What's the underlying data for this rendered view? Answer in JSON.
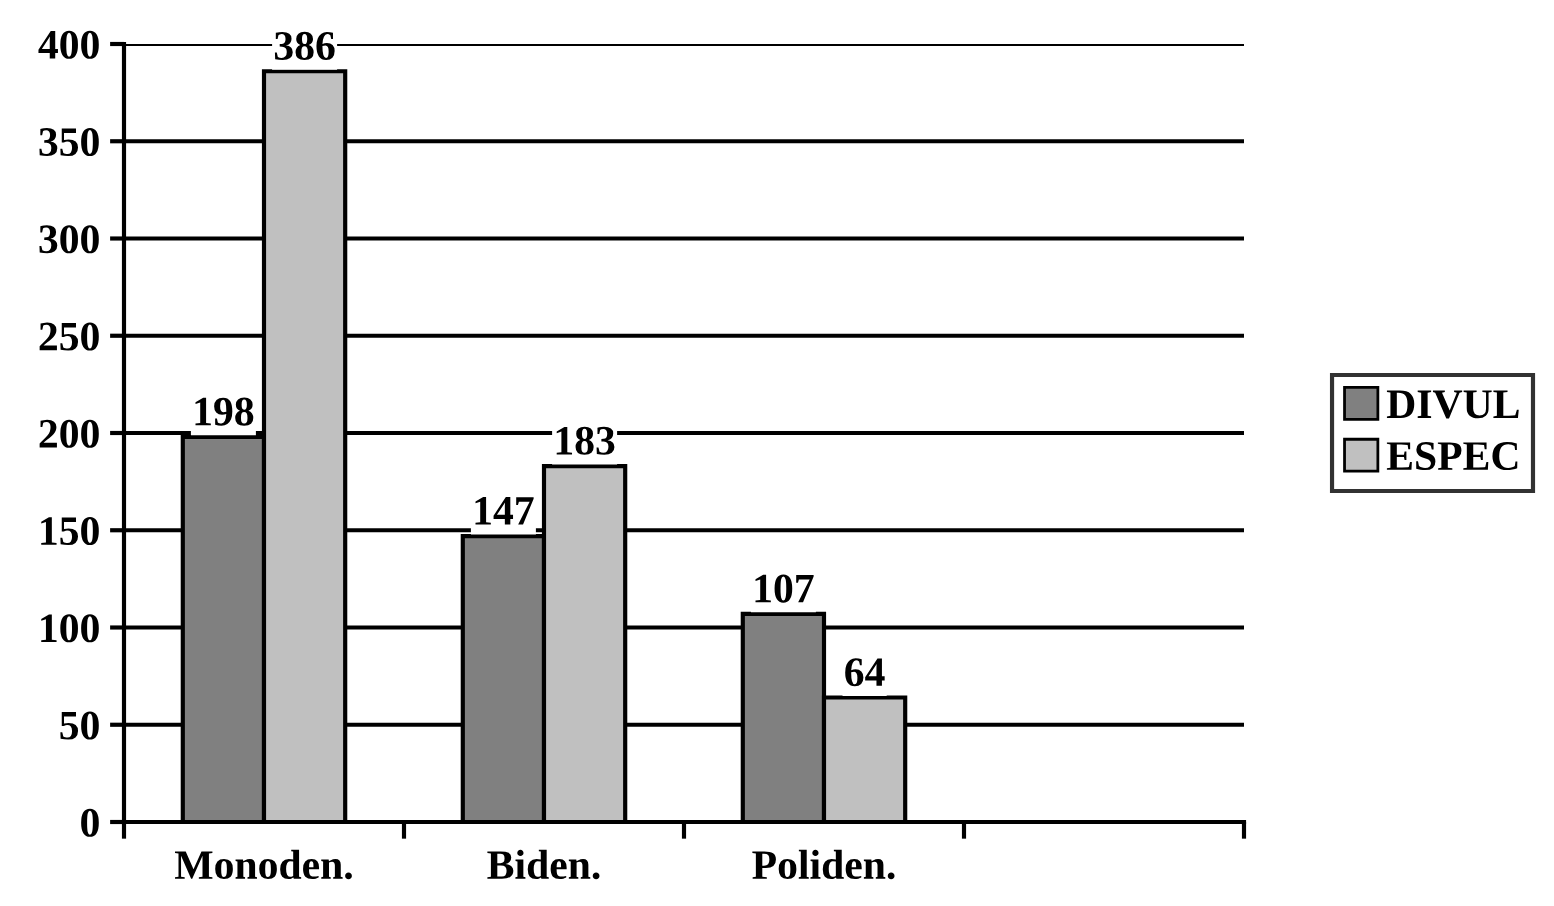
{
  "chart_data": {
    "type": "bar",
    "categories": [
      "Monoden.",
      "Biden.",
      "Poliden.",
      null
    ],
    "series": [
      {
        "name": "DIVUL",
        "color": "#808080",
        "values": [
          198,
          147,
          107,
          null
        ]
      },
      {
        "name": "ESPEC",
        "color": "#c0c0c0",
        "values": [
          386,
          183,
          64,
          null
        ]
      }
    ],
    "ylim": [
      0,
      400
    ],
    "yticks": [
      0,
      50,
      100,
      150,
      200,
      250,
      300,
      350,
      400
    ],
    "grid": "y",
    "legend": "right",
    "data_labels": true
  }
}
